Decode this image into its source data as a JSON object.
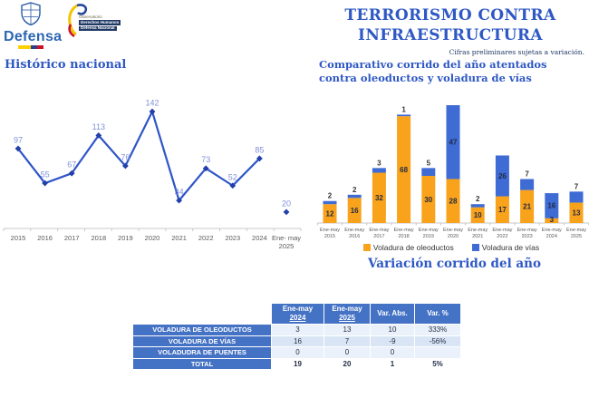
{
  "page": {
    "title_line1": "TERRORISMO CONTRA",
    "title_line2": "INFRAESTRUCTURA",
    "subtitle": "Cifras preliminares sujetas a variación."
  },
  "logos": {
    "defensa": {
      "name": "Defensa"
    },
    "observatorio": {
      "line1": "Observatorio",
      "line2": "Derechos Humanos",
      "line3": "Defensa Nacional"
    }
  },
  "sections": {
    "historico_heading": "Histórico nacional",
    "comparativo_heading": "Comparativo corrido del año atentados contra oleoductos y voladura de vías",
    "variacion_heading": "Variación corrido del año"
  },
  "chart_data": [
    {
      "type": "line",
      "title": "Histórico nacional",
      "categories": [
        "2015",
        "2016",
        "2017",
        "2018",
        "2019",
        "2020",
        "2021",
        "2022",
        "2023",
        "2024",
        "Ene- may\n2025"
      ],
      "values": [
        97,
        55,
        67,
        113,
        76,
        142,
        34,
        73,
        52,
        85,
        20
      ],
      "last_point_disconnected": true,
      "data_labels": true,
      "grid": false,
      "ylim": [
        0,
        160
      ],
      "xlabel": "",
      "ylabel": "",
      "line_color": "#2F55C8",
      "marker_color": "#2240A8",
      "label_color": "#8191DA"
    },
    {
      "type": "bar",
      "stacked": true,
      "title": "Comparativo corrido del año atentados contra oleoductos y voladura de vías",
      "categories": [
        "Ene-may\n2015",
        "Ene-may\n2016",
        "Ene-may\n2017",
        "Ene-may\n2018",
        "Ene-may\n2019",
        "Ene-may\n2020",
        "Ene-may\n2021",
        "Ene-may\n2022",
        "Ene-may\n2023",
        "Ene-may\n2024",
        "Ene-may\n2025"
      ],
      "series": [
        {
          "name": "Voladura de oleoductos",
          "color": "#F9A21B",
          "values": [
            12,
            16,
            32,
            68,
            30,
            28,
            10,
            17,
            21,
            3,
            13
          ]
        },
        {
          "name": "Voladura de vías",
          "color": "#3F6BD4",
          "values": [
            2,
            2,
            3,
            1,
            5,
            47,
            2,
            26,
            7,
            16,
            7
          ]
        }
      ],
      "data_labels": true,
      "grid": false,
      "legend_position": "bottom",
      "ylim": [
        0,
        80
      ],
      "xlabel": "",
      "ylabel": ""
    }
  ],
  "variacion": {
    "table": {
      "headers": [
        {
          "l1": "Ene-may",
          "l2": "2024"
        },
        {
          "l1": "Ene-may",
          "l2": "2025"
        },
        {
          "l1": "Var. Abs.",
          "l2": ""
        },
        {
          "l1": "Var. %",
          "l2": ""
        }
      ],
      "rows": [
        {
          "label": "VOLADURA DE OLEODUCTOS",
          "values": [
            "3",
            "13",
            "10",
            "333%"
          ]
        },
        {
          "label": "VOLADURA DE VÍAS",
          "values": [
            "16",
            "7",
            "-9",
            "-56%"
          ]
        },
        {
          "label": "VOLADUDRA DE PUENTES",
          "values": [
            "0",
            "0",
            "0",
            ""
          ]
        },
        {
          "label": "TOTAL",
          "values": [
            "19",
            "20",
            "1",
            "5%"
          ]
        }
      ]
    }
  },
  "colors": {
    "accent_blue": "#2E58C4",
    "table_blue": "#4472C4",
    "bar_orange": "#F9A21B",
    "bar_blue": "#3F6BD4",
    "line_blue": "#2F55C8",
    "label_periwinkle": "#8191DA"
  }
}
